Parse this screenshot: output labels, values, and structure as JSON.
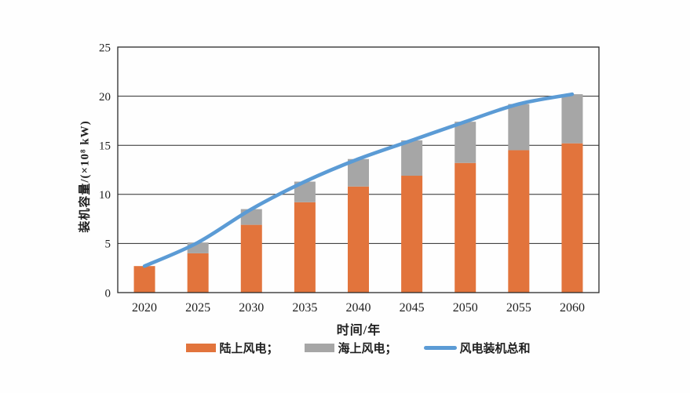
{
  "chart_data": {
    "type": "bar",
    "subtype": "stacked-bar-with-line",
    "title": "",
    "xlabel": "时间/年",
    "ylabel": "装机容量/(×10⁸ kW)",
    "categories": [
      "2020",
      "2025",
      "2030",
      "2035",
      "2040",
      "2045",
      "2050",
      "2055",
      "2060"
    ],
    "series": [
      {
        "name": "陆上风电",
        "type": "bar",
        "stack": "wind",
        "color": "#E2743C",
        "values": [
          2.7,
          4.0,
          6.9,
          9.2,
          10.8,
          11.9,
          13.2,
          14.5,
          15.2
        ]
      },
      {
        "name": "海上风电",
        "type": "bar",
        "stack": "wind",
        "color": "#A6A6A6",
        "values": [
          0.0,
          1.1,
          1.6,
          2.1,
          2.8,
          3.6,
          4.2,
          4.7,
          5.0
        ]
      },
      {
        "name": "风电装机总和",
        "type": "line",
        "color": "#5B9BD5",
        "values": [
          2.7,
          5.1,
          8.5,
          11.3,
          13.6,
          15.5,
          17.4,
          19.2,
          20.2
        ]
      }
    ],
    "ylim": [
      0,
      25
    ],
    "yticks": [
      0,
      5,
      10,
      15,
      20,
      25
    ],
    "grid": "horizontal",
    "legend_position": "bottom",
    "axis_color": "#2a2a2a",
    "tick_label_color": "#1f1f1f"
  },
  "legend": {
    "items": [
      {
        "label": "陆上风电；",
        "swatch": "bar",
        "series_index": 0
      },
      {
        "label": "海上风电；",
        "swatch": "bar",
        "series_index": 1
      },
      {
        "label": "风电装机总和",
        "swatch": "line",
        "series_index": 2
      }
    ]
  }
}
